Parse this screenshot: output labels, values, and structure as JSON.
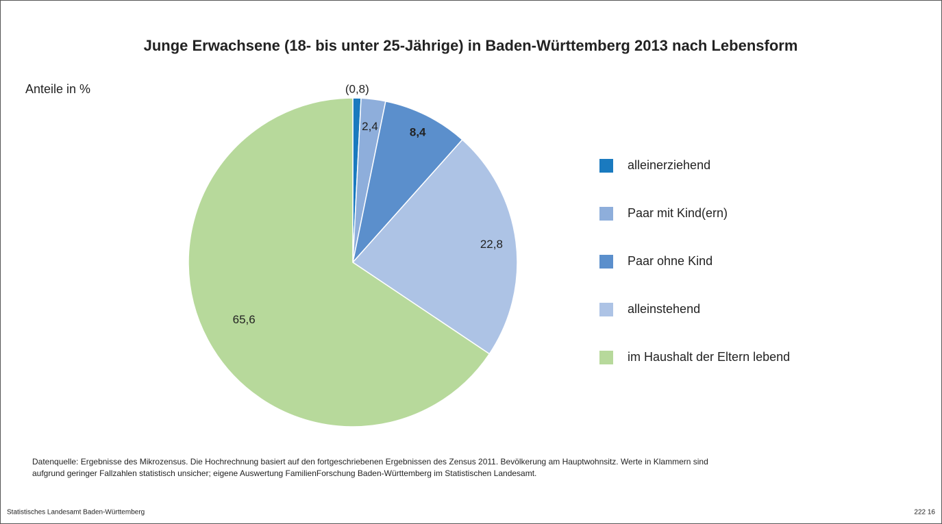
{
  "chart_data": {
    "type": "pie",
    "title": "Junge Erwachsene (18- bis unter 25-Jährige) in Baden-Württemberg 2013 nach Lebensform",
    "subtitle": "Anteile in %",
    "categories": [
      "alleinerziehend",
      "Paar mit Kind(ern)",
      "Paar ohne Kind",
      "alleinstehend",
      "im Haushalt der Eltern lebend"
    ],
    "values": [
      0.8,
      2.4,
      8.4,
      22.8,
      65.6
    ],
    "value_labels": [
      "(0,8)",
      "2,4",
      "8,4",
      "22,8",
      "65,6"
    ],
    "colors": [
      "#1a7abf",
      "#8eaedb",
      "#5b8fcc",
      "#adc3e5",
      "#b7d99b"
    ],
    "legend": "right",
    "footnote": [
      "Datenquelle: Ergebnisse des Mikrozensus. Die Hochrechnung basiert auf den fortgeschriebenen Ergebnissen des Zensus 2011. Bevölkerung am Hauptwohnsitz. Werte in Klammern sind",
      "aufgrund geringer Fallzahlen statistisch unsicher; eigene Auswertung FamilienForschung Baden-Württemberg im Statistischen Landesamt."
    ],
    "source": "Statistisches Landesamt Baden-Württemberg",
    "code": "222 16"
  }
}
